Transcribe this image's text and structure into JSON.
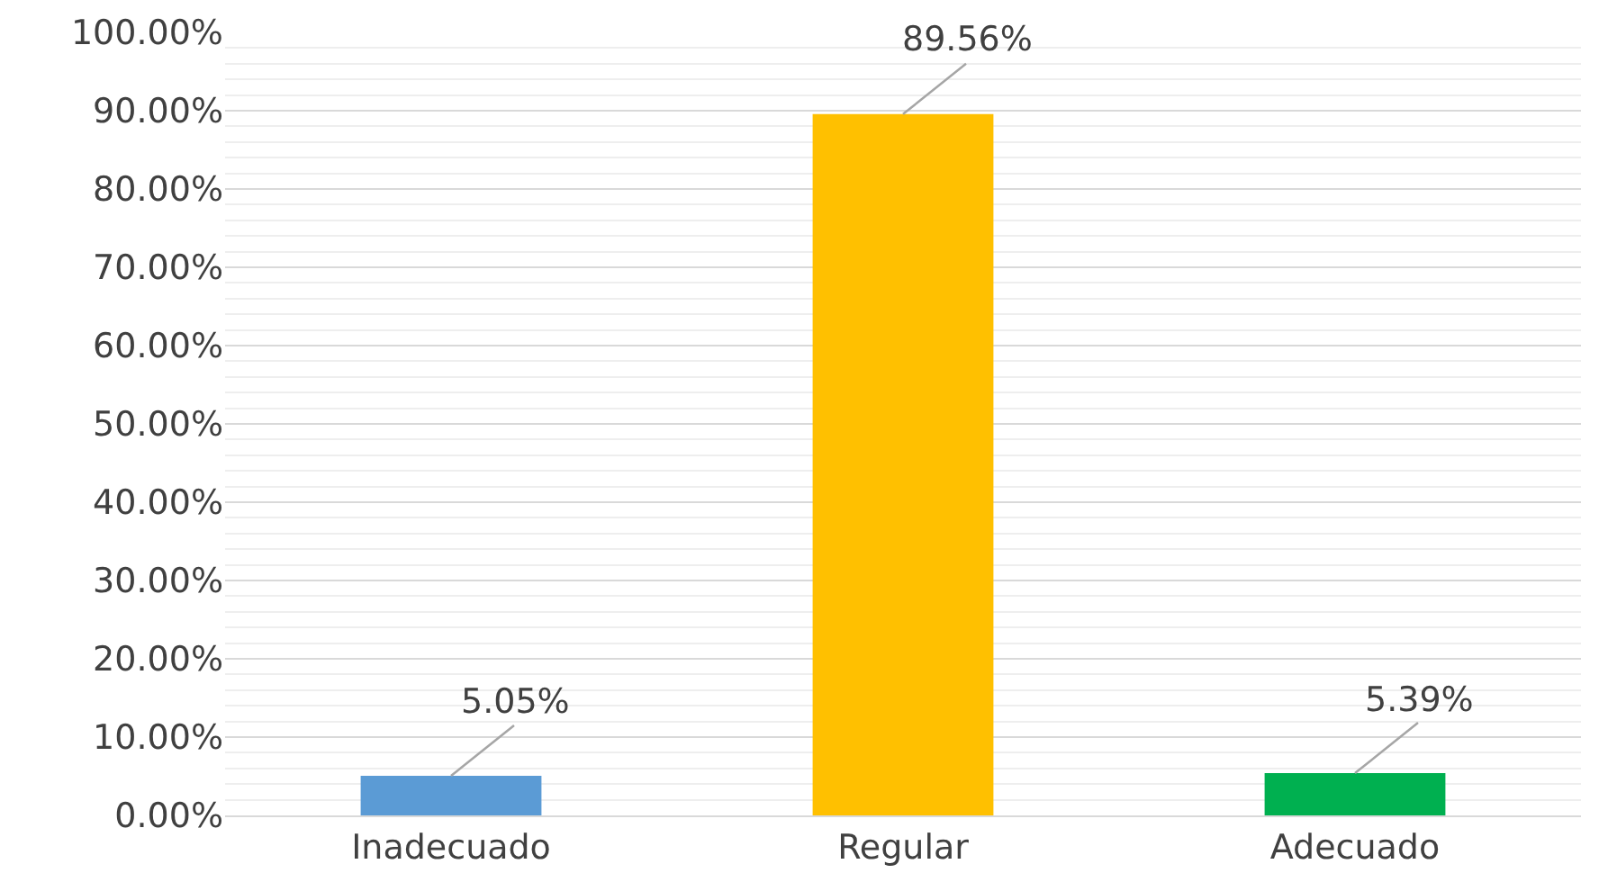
{
  "chart_data": {
    "type": "bar",
    "categories": [
      "Inadecuado",
      "Regular",
      "Adecuado"
    ],
    "values": [
      5.05,
      89.56,
      5.39
    ],
    "colors": [
      "#5b9bd5",
      "#ffc000",
      "#00b050"
    ],
    "value_labels": [
      "5.05%",
      "89.56%",
      "5.39%"
    ],
    "ylim": [
      0,
      100
    ],
    "yticks": [
      {
        "value": 0,
        "label": "0.00%"
      },
      {
        "value": 10,
        "label": "10.00%"
      },
      {
        "value": 20,
        "label": "20.00%"
      },
      {
        "value": 30,
        "label": "30.00%"
      },
      {
        "value": 40,
        "label": "40.00%"
      },
      {
        "value": 50,
        "label": "50.00%"
      },
      {
        "value": 60,
        "label": "60.00%"
      },
      {
        "value": 70,
        "label": "70.00%"
      },
      {
        "value": 80,
        "label": "80.00%"
      },
      {
        "value": 90,
        "label": "90.00%"
      },
      {
        "value": 100,
        "label": "100.00%"
      }
    ],
    "grid": "y"
  }
}
